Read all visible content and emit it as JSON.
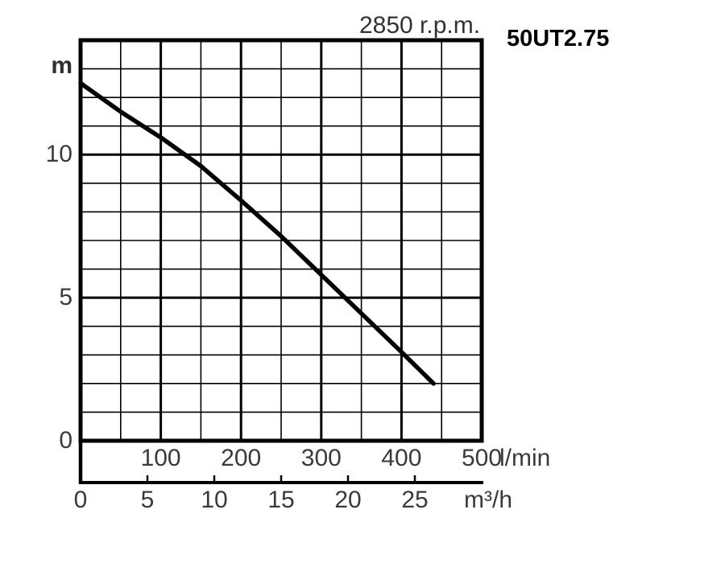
{
  "header": {
    "rpm_title": "2850 r.p.m.",
    "model": "50UT2.75"
  },
  "colors": {
    "line": "#000000",
    "text": "#3a3a3a",
    "model_text": "#000000",
    "background": "#ffffff"
  },
  "chart_data": {
    "type": "line",
    "title": "2850 r.p.m.",
    "model_label": "50UT2.75",
    "grid": true,
    "legend": false,
    "y_axis": {
      "unit": "m",
      "ticks": [
        0,
        5,
        10
      ],
      "max": 14,
      "minor_step": 1,
      "major_ticks": [
        5,
        10
      ]
    },
    "x_axis_primary": {
      "unit": "l/min",
      "ticks": [
        100,
        200,
        300,
        400,
        500
      ],
      "max": 500,
      "minor_step": 50
    },
    "x_axis_secondary": {
      "unit": "m³/h",
      "ticks": [
        0,
        5,
        10,
        15,
        20,
        25
      ],
      "lmin_per_unit": 16.6667
    },
    "series": [
      {
        "name": "50UT2.75 head curve",
        "x_unit": "l/min",
        "y_unit": "m",
        "points": [
          [
            0,
            12.5
          ],
          [
            50,
            11.5
          ],
          [
            100,
            10.6
          ],
          [
            150,
            9.6
          ],
          [
            200,
            8.4
          ],
          [
            250,
            7.15
          ],
          [
            300,
            5.8
          ],
          [
            350,
            4.45
          ],
          [
            400,
            3.1
          ],
          [
            440,
            2.0
          ]
        ]
      }
    ]
  }
}
